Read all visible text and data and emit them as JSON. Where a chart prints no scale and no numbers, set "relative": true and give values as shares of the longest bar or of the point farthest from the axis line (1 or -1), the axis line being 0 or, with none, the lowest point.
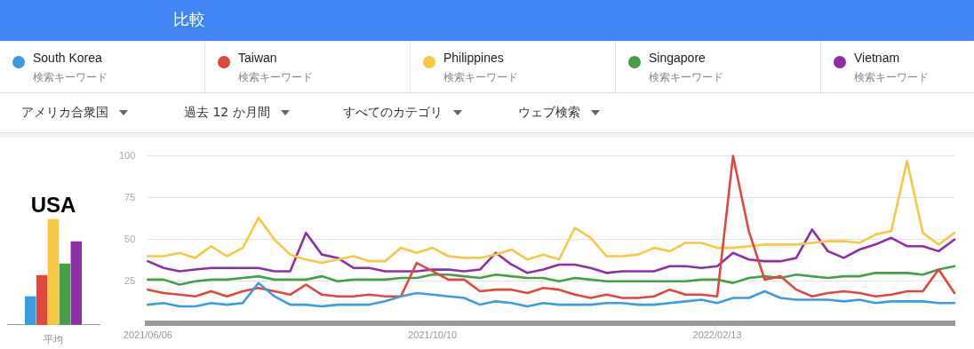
{
  "chart_data": [
    {
      "type": "bar",
      "title": "USA",
      "categories": [
        "平均"
      ],
      "relative": true,
      "series": [
        {
          "color": "#3d9be0",
          "values": [
            0.27
          ]
        },
        {
          "color": "#e0483d",
          "values": [
            0.47
          ]
        },
        {
          "color": "#f6c844",
          "values": [
            1
          ]
        },
        {
          "color": "#43a047",
          "values": [
            0.58
          ]
        },
        {
          "color": "#8e2fa8",
          "values": [
            0.79
          ]
        }
      ]
    },
    {
      "type": "line",
      "legend": "top",
      "grid": "y",
      "marker": "none",
      "annotations": [
        "比較",
        "アメリカ合衆国",
        "過去 12 か月間",
        "すべてのカテゴリ",
        "ウェブ検索",
        "検索キーワード",
        "検索キーワード",
        "検索キーワード",
        "検索キーワード",
        "検索キーワード"
      ],
      "x": [
        "2021-06-06",
        "2021-06-13",
        "2021-06-20",
        "2021-06-27",
        "2021-07-04",
        "2021-07-11",
        "2021-07-18",
        "2021-07-25",
        "2021-08-01",
        "2021-08-08",
        "2021-08-15",
        "2021-08-22",
        "2021-08-29",
        "2021-09-05",
        "2021-09-12",
        "2021-09-19",
        "2021-09-26",
        "2021-10-03",
        "2021-10-10",
        "2021-10-17",
        "2021-10-24",
        "2021-10-31",
        "2021-11-07",
        "2021-11-14",
        "2021-11-21",
        "2021-11-28",
        "2021-12-05",
        "2021-12-12",
        "2021-12-19",
        "2021-12-26",
        "2022-01-02",
        "2022-01-09",
        "2022-01-16",
        "2022-01-23",
        "2022-01-30",
        "2022-02-06",
        "2022-02-13",
        "2022-02-20",
        "2022-02-27",
        "2022-03-06",
        "2022-03-13",
        "2022-03-20",
        "2022-03-27",
        "2022-04-03",
        "2022-04-10",
        "2022-04-17",
        "2022-04-24",
        "2022-05-01",
        "2022-05-08",
        "2022-05-15",
        "2022-05-22",
        "2022-05-29"
      ],
      "xlim": [
        "2021-06-06",
        "2022-05-29"
      ],
      "xticks": [
        {
          "value": "2021-06-06",
          "label": "2021/06/06"
        },
        {
          "value": "2021-10-10",
          "label": "2021/10/10"
        },
        {
          "value": "2022-02-13",
          "label": "2022/02/13"
        }
      ],
      "ylim": [
        0,
        100
      ],
      "yticks": [
        25,
        50,
        75,
        100
      ],
      "series": [
        {
          "name": "South Korea",
          "color": "#3d9be0",
          "values": [
            11,
            12,
            10,
            10,
            12,
            11,
            12,
            24,
            16,
            11,
            11,
            10,
            11,
            11,
            11,
            13,
            16,
            18,
            17,
            16,
            15,
            11,
            13,
            12,
            10,
            12,
            11,
            11,
            11,
            12,
            12,
            11,
            11,
            12,
            13,
            14,
            12,
            15,
            15,
            19,
            15,
            14,
            14,
            14,
            13,
            14,
            12,
            13,
            13,
            13,
            12,
            12
          ]
        },
        {
          "name": "Taiwan",
          "color": "#e0483d",
          "values": [
            20,
            18,
            17,
            16,
            19,
            16,
            19,
            21,
            19,
            17,
            23,
            17,
            16,
            16,
            17,
            16,
            16,
            36,
            31,
            26,
            26,
            19,
            20,
            20,
            18,
            21,
            20,
            17,
            15,
            17,
            15,
            15,
            16,
            20,
            17,
            17,
            16,
            100,
            55,
            26,
            28,
            20,
            16,
            18,
            19,
            18,
            16,
            17,
            19,
            19,
            32,
            18
          ]
        },
        {
          "name": "Philippines",
          "color": "#f6c844",
          "values": [
            40,
            40,
            42,
            39,
            46,
            40,
            45,
            63,
            50,
            41,
            38,
            36,
            38,
            40,
            37,
            37,
            45,
            42,
            45,
            40,
            39,
            39,
            41,
            44,
            38,
            41,
            38,
            57,
            51,
            40,
            40,
            41,
            45,
            43,
            48,
            48,
            45,
            45,
            46,
            47,
            47,
            47,
            48,
            49,
            49,
            48,
            53,
            55,
            97,
            54,
            47,
            54
          ]
        },
        {
          "name": "Singapore",
          "color": "#43a047",
          "values": [
            26,
            26,
            23,
            25,
            26,
            26,
            27,
            28,
            26,
            26,
            26,
            28,
            25,
            26,
            26,
            26,
            27,
            27,
            29,
            29,
            28,
            27,
            29,
            28,
            27,
            27,
            25,
            27,
            26,
            25,
            25,
            25,
            25,
            25,
            25,
            26,
            26,
            24,
            27,
            28,
            27,
            29,
            28,
            27,
            28,
            28,
            30,
            30,
            30,
            29,
            32,
            34
          ]
        },
        {
          "name": "Vietnam",
          "color": "#8e2fa8",
          "values": [
            37,
            33,
            31,
            32,
            33,
            33,
            33,
            33,
            31,
            31,
            54,
            41,
            39,
            33,
            33,
            31,
            31,
            31,
            32,
            32,
            31,
            32,
            42,
            35,
            30,
            32,
            35,
            35,
            33,
            30,
            31,
            31,
            31,
            34,
            34,
            33,
            34,
            42,
            38,
            37,
            37,
            39,
            56,
            43,
            39,
            44,
            47,
            51,
            46,
            46,
            43,
            50
          ]
        }
      ]
    }
  ]
}
